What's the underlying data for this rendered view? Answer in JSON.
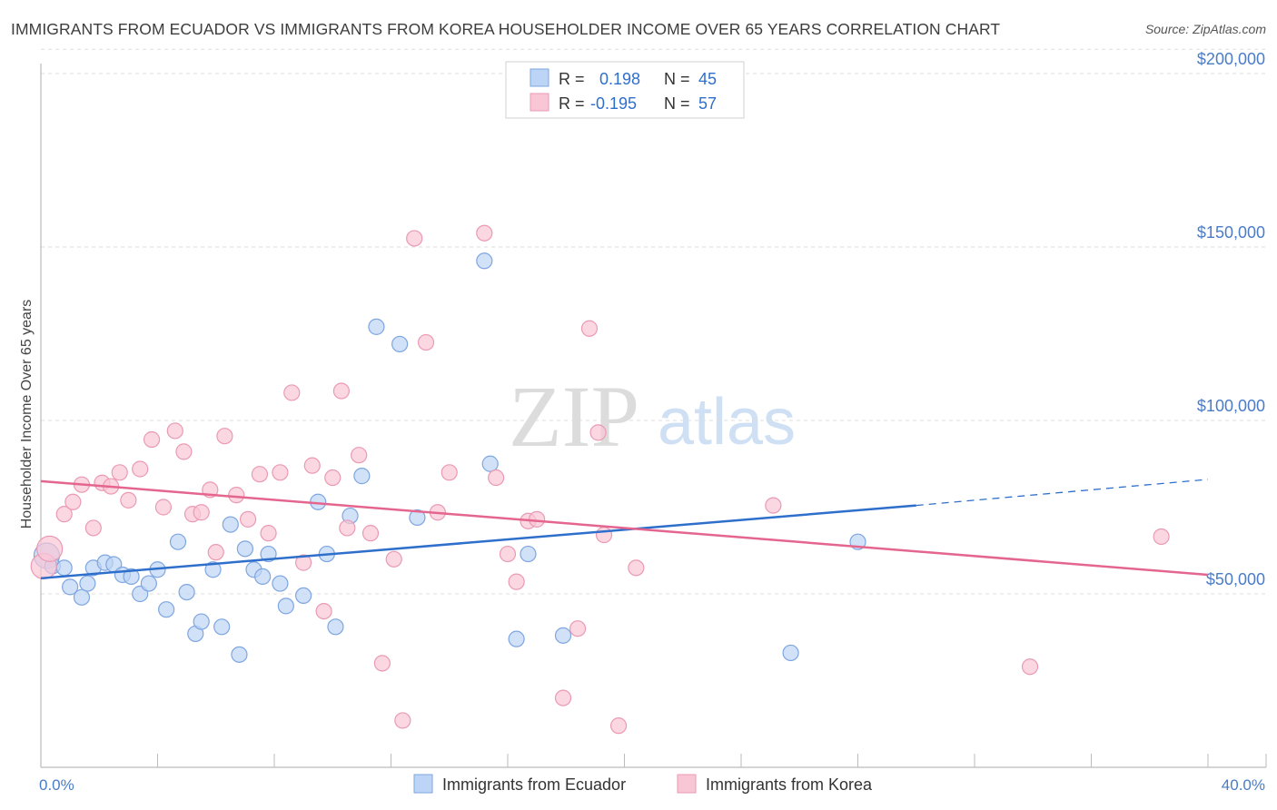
{
  "header": {
    "title": "IMMIGRANTS FROM ECUADOR VS IMMIGRANTS FROM KOREA HOUSEHOLDER INCOME OVER 65 YEARS CORRELATION CHART",
    "source": "Source: ZipAtlas.com"
  },
  "watermark": {
    "zip": "ZIP",
    "atlas": "atlas"
  },
  "stats": {
    "r_label": "R =",
    "n_label": "N =",
    "ecuador": {
      "r": "0.198",
      "n": "45"
    },
    "korea": {
      "r": "-0.195",
      "n": "57"
    }
  },
  "colors": {
    "ecuador_fill": "#bcd4f5",
    "ecuador_stroke": "#7ea6e0",
    "ecuador_line": "#2f6fcc",
    "korea_fill": "#f9c6d6",
    "korea_stroke": "#ea9ab4",
    "korea_line": "#e4668f",
    "value_text": "#2f6fcc",
    "grid": "#dddddd"
  },
  "chart_data": {
    "type": "scatter",
    "title": "IMMIGRANTS FROM ECUADOR VS IMMIGRANTS FROM KOREA HOUSEHOLDER INCOME OVER 65 YEARS CORRELATION CHART",
    "xlabel": "",
    "ylabel": "Householder Income Over 65 years",
    "xlim": [
      0,
      40
    ],
    "ylim": [
      0,
      207000
    ],
    "x_tick_labels": {
      "min": "0.0%",
      "max": "40.0%"
    },
    "y_ticks": [
      {
        "value": 50000,
        "label": "$50,000"
      },
      {
        "value": 100000,
        "label": "$100,000"
      },
      {
        "value": 150000,
        "label": "$150,000"
      },
      {
        "value": 200000,
        "label": "$200,000"
      }
    ],
    "series": [
      {
        "name": "Immigrants from Ecuador",
        "r": 0.198,
        "n": 45,
        "trend": {
          "x0": 0,
          "y0": 54500,
          "x1": 30,
          "y1": 75500,
          "dash_to_x": 40,
          "dash_to_y": 83000
        },
        "points": [
          [
            0.2,
            61000
          ],
          [
            0.4,
            58000
          ],
          [
            0.8,
            57500
          ],
          [
            1.0,
            52000
          ],
          [
            1.4,
            49000
          ],
          [
            1.6,
            53000
          ],
          [
            1.8,
            57500
          ],
          [
            2.2,
            59000
          ],
          [
            2.5,
            58500
          ],
          [
            2.8,
            55500
          ],
          [
            3.1,
            55000
          ],
          [
            3.4,
            50000
          ],
          [
            3.7,
            53000
          ],
          [
            4.0,
            57000
          ],
          [
            4.3,
            45500
          ],
          [
            4.7,
            65000
          ],
          [
            5.0,
            50500
          ],
          [
            5.3,
            38500
          ],
          [
            5.5,
            42000
          ],
          [
            5.9,
            57000
          ],
          [
            6.2,
            40500
          ],
          [
            6.5,
            70000
          ],
          [
            6.8,
            32500
          ],
          [
            7.0,
            63000
          ],
          [
            7.3,
            57000
          ],
          [
            7.6,
            55000
          ],
          [
            7.8,
            61500
          ],
          [
            8.2,
            53000
          ],
          [
            8.4,
            46500
          ],
          [
            9.0,
            49500
          ],
          [
            9.5,
            76500
          ],
          [
            9.8,
            61500
          ],
          [
            10.1,
            40500
          ],
          [
            10.6,
            72500
          ],
          [
            11.0,
            84000
          ],
          [
            11.5,
            127000
          ],
          [
            12.3,
            122000
          ],
          [
            12.9,
            72000
          ],
          [
            15.2,
            146000
          ],
          [
            15.4,
            87500
          ],
          [
            16.3,
            37000
          ],
          [
            16.7,
            61500
          ],
          [
            17.9,
            38000
          ],
          [
            25.7,
            33000
          ],
          [
            28.0,
            65000
          ]
        ]
      },
      {
        "name": "Immigrants from Korea",
        "r": -0.195,
        "n": 57,
        "trend": {
          "x0": 0,
          "y0": 82500,
          "x1": 40,
          "y1": 55500
        },
        "points": [
          [
            0.1,
            58000
          ],
          [
            0.3,
            63000
          ],
          [
            0.8,
            73000
          ],
          [
            1.1,
            76500
          ],
          [
            1.4,
            81500
          ],
          [
            1.8,
            69000
          ],
          [
            2.1,
            82000
          ],
          [
            2.4,
            81000
          ],
          [
            2.7,
            85000
          ],
          [
            3.0,
            77000
          ],
          [
            3.4,
            86000
          ],
          [
            3.8,
            94500
          ],
          [
            4.2,
            75000
          ],
          [
            4.6,
            97000
          ],
          [
            4.9,
            91000
          ],
          [
            5.2,
            73000
          ],
          [
            5.5,
            73500
          ],
          [
            5.8,
            80000
          ],
          [
            6.0,
            62000
          ],
          [
            6.3,
            95500
          ],
          [
            6.7,
            78500
          ],
          [
            7.1,
            71500
          ],
          [
            7.5,
            84500
          ],
          [
            7.8,
            67500
          ],
          [
            8.2,
            85000
          ],
          [
            8.6,
            108000
          ],
          [
            9.0,
            59000
          ],
          [
            9.3,
            87000
          ],
          [
            9.7,
            45000
          ],
          [
            10.0,
            83500
          ],
          [
            10.3,
            108500
          ],
          [
            10.5,
            69000
          ],
          [
            10.9,
            90000
          ],
          [
            11.3,
            67500
          ],
          [
            11.7,
            30000
          ],
          [
            12.1,
            60000
          ],
          [
            12.4,
            13500
          ],
          [
            12.8,
            152500
          ],
          [
            13.2,
            122500
          ],
          [
            13.6,
            73500
          ],
          [
            14.0,
            85000
          ],
          [
            15.2,
            154000
          ],
          [
            15.6,
            83500
          ],
          [
            16.0,
            61500
          ],
          [
            16.3,
            53500
          ],
          [
            16.7,
            71000
          ],
          [
            17.0,
            71500
          ],
          [
            17.9,
            20000
          ],
          [
            18.4,
            40000
          ],
          [
            18.8,
            126500
          ],
          [
            19.1,
            96500
          ],
          [
            19.3,
            67000
          ],
          [
            19.8,
            12000
          ],
          [
            20.4,
            57500
          ],
          [
            25.1,
            75500
          ],
          [
            33.9,
            29000
          ],
          [
            38.4,
            66500
          ]
        ]
      }
    ]
  },
  "legend": {
    "ecuador_label": "Immigrants from Ecuador",
    "korea_label": "Immigrants from Korea"
  }
}
